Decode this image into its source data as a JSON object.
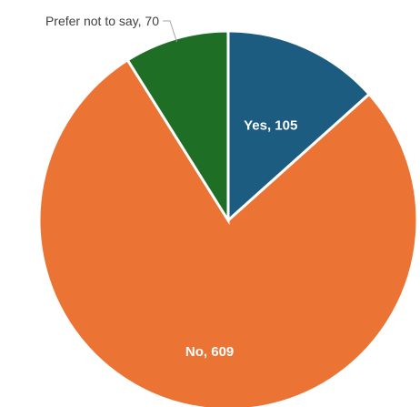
{
  "chart_data": {
    "type": "pie",
    "title": "",
    "categories": [
      "Yes",
      "No",
      "Prefer not to say"
    ],
    "values": [
      105,
      609,
      70
    ],
    "labels": [
      "Yes, 105",
      "No, 609",
      "Prefer not to say, 70"
    ],
    "colors": [
      "#1b5c80",
      "#eb7334",
      "#1e6e26"
    ],
    "start_angle_deg": 0,
    "direction": "clockwise",
    "legend": "none",
    "label_positions": [
      "inside",
      "inside",
      "outside"
    ]
  }
}
